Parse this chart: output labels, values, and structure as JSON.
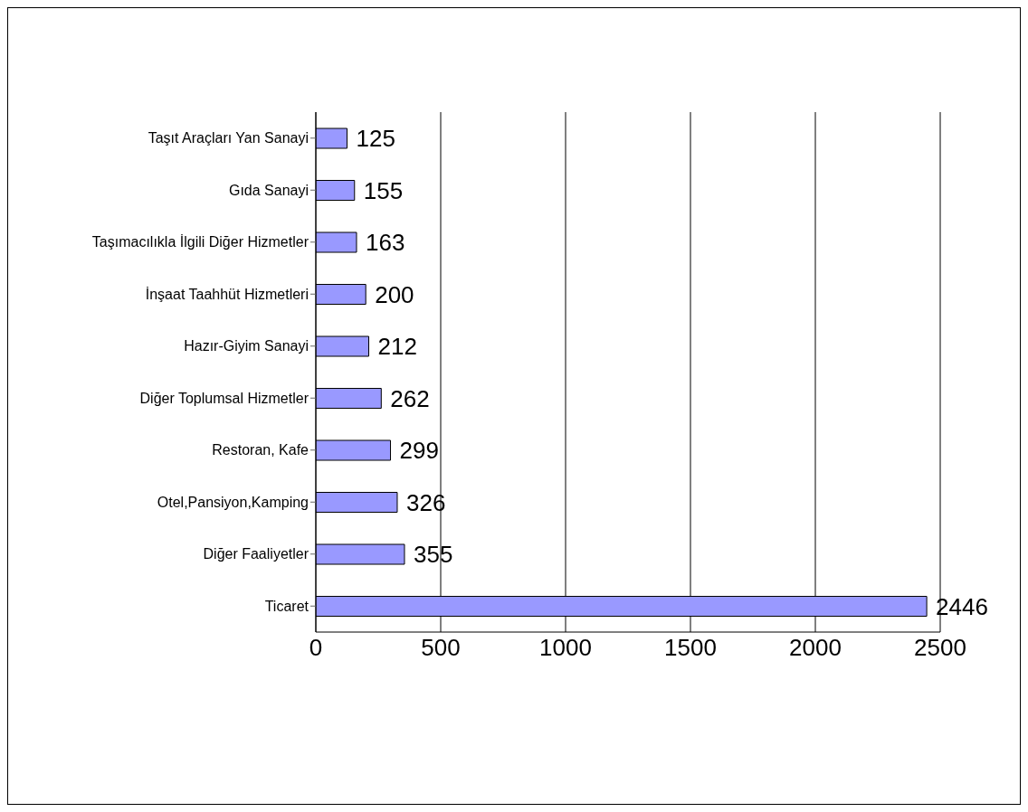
{
  "chart_data": {
    "type": "bar",
    "orientation": "horizontal",
    "categories": [
      "Taşıt Araçları Yan Sanayi",
      "Gıda Sanayi",
      "Taşımacılıkla İlgili Diğer Hizmetler",
      "İnşaat Taahhüt Hizmetleri",
      "Hazır-Giyim Sanayi",
      "Diğer Toplumsal Hizmetler",
      "Restoran, Kafe",
      "Otel,Pansiyon,Kamping",
      "Diğer Faaliyetler",
      "Ticaret"
    ],
    "values": [
      125,
      155,
      163,
      200,
      212,
      262,
      299,
      326,
      355,
      2446
    ],
    "color": "#9999ff",
    "data_labels": true,
    "grid": "x",
    "xlim": [
      0,
      2500
    ],
    "xticks": [
      0,
      500,
      1000,
      1500,
      2000,
      2500
    ]
  }
}
